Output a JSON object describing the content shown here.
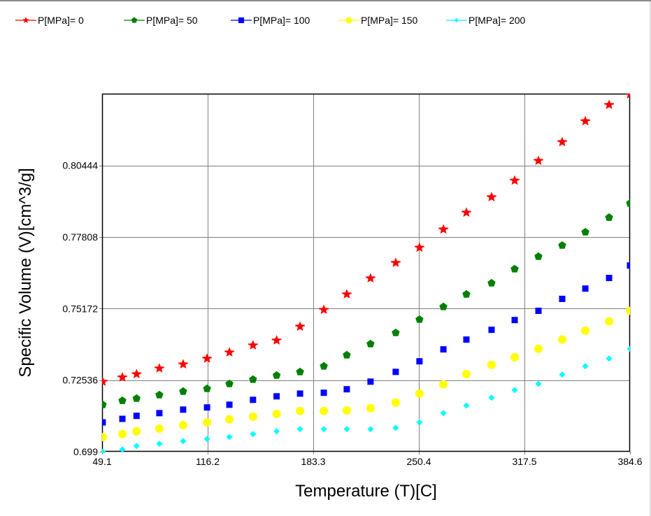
{
  "chart_data": {
    "type": "scatter",
    "title": "",
    "xlabel": "Temperature (T)[C]",
    "ylabel": "Specific Volume (V)[cm^3/g]",
    "xlim": [
      49.1,
      384.6
    ],
    "ylim": [
      0.699,
      0.8309
    ],
    "x_ticks": [
      "49.1",
      "116.2",
      "183.3",
      "250.4",
      "317.5",
      "384.6"
    ],
    "x_tick_values": [
      49.1,
      116.2,
      183.3,
      250.4,
      317.5,
      384.6
    ],
    "y_ticks": [
      "0.699",
      "0.72536",
      "0.75172",
      "0.77808",
      "0.80444"
    ],
    "y_tick_values": [
      0.699,
      0.72536,
      0.75172,
      0.77808,
      0.80444
    ],
    "grid": true,
    "legend_position": "top",
    "x": [
      49.5,
      62.0,
      71.0,
      85.5,
      100.6,
      115.8,
      130.0,
      145.0,
      160.0,
      174.9,
      190.0,
      204.6,
      219.7,
      235.7,
      250.8,
      266.0,
      280.6,
      296.6,
      311.3,
      326.4,
      341.5,
      356.2,
      371.3,
      384.6
    ],
    "series": [
      {
        "name": "P[MPa]= 0",
        "color": "#ff0000",
        "marker": "star",
        "values": [
          0.7248,
          0.7264,
          0.7276,
          0.7297,
          0.7312,
          0.7333,
          0.7356,
          0.7382,
          0.74,
          0.7451,
          0.7513,
          0.757,
          0.7629,
          0.7686,
          0.7742,
          0.7809,
          0.7871,
          0.7928,
          0.7989,
          0.8062,
          0.8131,
          0.8208,
          0.8268,
          0.8307
        ]
      },
      {
        "name": "P[MPa]= 50",
        "color": "#008000",
        "marker": "pentagon",
        "values": [
          0.7163,
          0.7178,
          0.7186,
          0.7199,
          0.7212,
          0.7222,
          0.724,
          0.7256,
          0.7271,
          0.7284,
          0.7305,
          0.7346,
          0.7387,
          0.7428,
          0.7477,
          0.7524,
          0.757,
          0.7611,
          0.7663,
          0.7709,
          0.775,
          0.7799,
          0.7853,
          0.7905
        ]
      },
      {
        "name": "P[MPa]= 100",
        "color": "#0000ff",
        "marker": "square",
        "values": [
          0.7098,
          0.7111,
          0.7122,
          0.7132,
          0.7145,
          0.7153,
          0.7163,
          0.7181,
          0.7194,
          0.7204,
          0.7207,
          0.722,
          0.7248,
          0.7284,
          0.7323,
          0.7367,
          0.7403,
          0.7439,
          0.7475,
          0.7509,
          0.7553,
          0.7591,
          0.763,
          0.7676
        ]
      },
      {
        "name": "P[MPa]= 150",
        "color": "#ffff00",
        "marker": "circle",
        "values": [
          0.7044,
          0.7055,
          0.7065,
          0.7075,
          0.7088,
          0.7098,
          0.7109,
          0.7119,
          0.7129,
          0.714,
          0.714,
          0.7142,
          0.715,
          0.7171,
          0.7204,
          0.7238,
          0.7276,
          0.731,
          0.7338,
          0.7369,
          0.7403,
          0.7436,
          0.747,
          0.7509
        ]
      },
      {
        "name": "P[MPa]= 200",
        "color": "#00ffff",
        "marker": "diamond",
        "values": [
          0.699,
          0.6998,
          0.7011,
          0.7019,
          0.7029,
          0.7037,
          0.7044,
          0.7055,
          0.7065,
          0.7073,
          0.7073,
          0.7073,
          0.7073,
          0.7078,
          0.7098,
          0.7132,
          0.716,
          0.7189,
          0.7217,
          0.724,
          0.7274,
          0.7305,
          0.7333,
          0.7369
        ]
      }
    ]
  }
}
